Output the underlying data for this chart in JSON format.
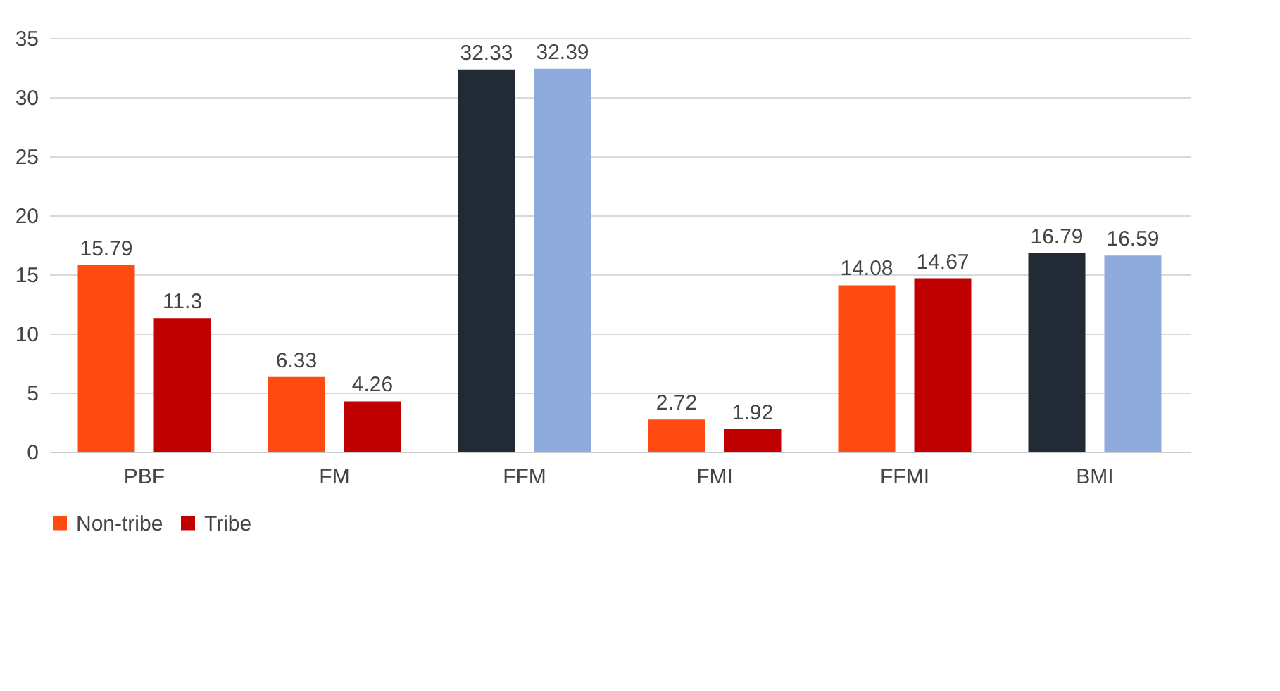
{
  "chart_data": {
    "type": "bar",
    "categories": [
      "PBF",
      "FM",
      "FFM",
      "FMI",
      "FFMI",
      "BMI"
    ],
    "series": [
      {
        "name": "Non-tribe",
        "colors": [
          "#ff4a12",
          "#ff4a12",
          "#222a35",
          "#ff4a12",
          "#ff4a12",
          "#222a35"
        ],
        "values": [
          15.79,
          6.33,
          32.33,
          2.72,
          14.08,
          16.79
        ]
      },
      {
        "name": "Tribe",
        "colors": [
          "#c00000",
          "#c00000",
          "#8faadc",
          "#c00000",
          "#c00000",
          "#8faadc"
        ],
        "values": [
          11.3,
          4.26,
          32.39,
          1.92,
          14.67,
          16.59
        ]
      }
    ],
    "ylim": [
      0,
      35
    ],
    "yticks": [
      0,
      5,
      10,
      15,
      20,
      25,
      30,
      35
    ],
    "grid": "y",
    "data_labels": true,
    "legend": "bottom"
  }
}
